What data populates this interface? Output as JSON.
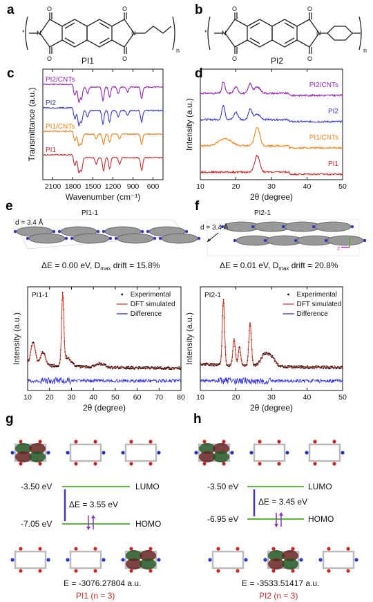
{
  "panels": {
    "a": {
      "label": "a",
      "polymer": "PI1",
      "sub": "n"
    },
    "b": {
      "label": "b",
      "polymer": "PI2",
      "sub": "n"
    },
    "c": {
      "label": "c"
    },
    "d": {
      "label": "d"
    },
    "e": {
      "label": "e",
      "model": "PI1-1",
      "d": "d = 3.4 Å",
      "energy": "ΔE = 0.00 eV, D",
      "drift": "max",
      "drift2": " drift = 15.8%"
    },
    "f": {
      "label": "f",
      "model": "PI2-1",
      "d": "d = 3.4 Å",
      "energy": "ΔE = 0.01 eV, D",
      "drift": "max",
      "drift2": " drift = 20.8%"
    },
    "g": {
      "label": "g",
      "lumo_e": "-3.50 eV",
      "homo_e": "-7.05 eV",
      "gap": "ΔE = 3.55 eV",
      "lumo": "LUMO",
      "homo": "HOMO",
      "total": "E = -3076.27804 a.u.",
      "name": "PI1 (n = 3)"
    },
    "h": {
      "label": "h",
      "lumo_e": "-3.50 eV",
      "homo_e": "-6.95 eV",
      "gap": "ΔE = 3.45 eV",
      "lumo": "LUMO",
      "homo": "HOMO",
      "total": "E = -3533.51417 a.u.",
      "name": "PI2 (n = 3)"
    }
  },
  "colors": {
    "PI1": "#d62728",
    "PI1/CNTs": "#ff7f0e",
    "PI2": "#3333dd",
    "PI2/CNTs": "#9b1fbf",
    "sim": "#e03020",
    "diff": "#2222ee",
    "level": "#55bb33",
    "arrow": "#4433cc",
    "spin": "#8833bb"
  },
  "chart_data": [
    {
      "id": "c",
      "type": "line",
      "xlabel": "Wavenumber (cm⁻¹)",
      "ylabel": "Transmittance (a.u.)",
      "xlim": [
        2250,
        450
      ],
      "xticks": [
        2100,
        1800,
        1500,
        1200,
        900,
        600
      ],
      "series": [
        {
          "name": "PI2/CNTs",
          "offset": 3,
          "dips": [
            [
              1770,
              0.5
            ],
            [
              1710,
              0.9
            ],
            [
              1670,
              0.7
            ],
            [
              1580,
              0.4
            ],
            [
              1350,
              0.8
            ],
            [
              1250,
              0.6
            ],
            [
              1120,
              0.4
            ],
            [
              980,
              0.3
            ],
            [
              770,
              0.7
            ]
          ]
        },
        {
          "name": "PI2",
          "offset": 2,
          "dips": [
            [
              1770,
              0.5
            ],
            [
              1710,
              0.9
            ],
            [
              1670,
              0.7
            ],
            [
              1580,
              0.4
            ],
            [
              1350,
              0.8
            ],
            [
              1250,
              0.7
            ],
            [
              1120,
              0.4
            ],
            [
              980,
              0.3
            ],
            [
              770,
              0.7
            ]
          ]
        },
        {
          "name": "PI1/CNTs",
          "offset": 1,
          "dips": [
            [
              1770,
              0.4
            ],
            [
              1710,
              0.7
            ],
            [
              1670,
              0.6
            ],
            [
              1450,
              0.3
            ],
            [
              1340,
              0.6
            ],
            [
              1250,
              0.5
            ],
            [
              1100,
              0.3
            ],
            [
              770,
              0.6
            ]
          ]
        },
        {
          "name": "PI1",
          "offset": 0,
          "dips": [
            [
              1770,
              0.5
            ],
            [
              1710,
              0.9
            ],
            [
              1670,
              0.8
            ],
            [
              1450,
              0.4
            ],
            [
              1340,
              0.8
            ],
            [
              1250,
              0.7
            ],
            [
              1100,
              0.4
            ],
            [
              770,
              0.8
            ]
          ]
        }
      ]
    },
    {
      "id": "d",
      "type": "line",
      "xlabel": "2θ (degree)",
      "ylabel": "Intensity (a.u.)",
      "xlim": [
        10,
        50
      ],
      "xticks": [
        10,
        20,
        30,
        40,
        50
      ],
      "series": [
        {
          "name": "PI2/CNTs",
          "offset": 3,
          "peaks": [
            [
              16.5,
              0.55,
              0.6
            ],
            [
              20,
              0.3,
              0.8
            ],
            [
              24,
              0.45,
              0.7
            ],
            [
              26,
              0.3,
              1.2
            ]
          ]
        },
        {
          "name": "PI2",
          "offset": 2,
          "peaks": [
            [
              16.5,
              0.7,
              0.6
            ],
            [
              20,
              0.35,
              0.8
            ],
            [
              24,
              0.5,
              0.7
            ],
            [
              26,
              0.25,
              1.2
            ]
          ]
        },
        {
          "name": "PI1/CNTs",
          "offset": 1,
          "peaks": [
            [
              17,
              0.35,
              2.5
            ],
            [
              26,
              0.9,
              1.0
            ]
          ]
        },
        {
          "name": "PI1",
          "offset": 0,
          "peaks": [
            [
              26,
              0.8,
              1.0
            ]
          ]
        }
      ]
    },
    {
      "id": "e",
      "type": "scatter",
      "title": "PI1-1",
      "xlabel": "2θ (degree)",
      "ylabel": "Intensity (a.u.)",
      "xlim": [
        10,
        80
      ],
      "xticks": [
        10,
        20,
        30,
        40,
        50,
        60,
        70,
        80
      ],
      "legend": [
        "Experimental",
        "DFT simulated",
        "Difference"
      ],
      "peaks": [
        [
          12.5,
          0.3,
          1.5
        ],
        [
          17,
          0.18,
          1.5
        ],
        [
          26,
          0.95,
          0.7
        ],
        [
          28,
          0.12,
          2.5
        ],
        [
          43,
          0.05,
          3
        ]
      ]
    },
    {
      "id": "f",
      "type": "scatter",
      "title": "PI2-1",
      "xlabel": "2θ (degree)",
      "ylabel": "Intensity (a.u.)",
      "xlim": [
        10,
        50
      ],
      "xticks": [
        10,
        20,
        30,
        40,
        50
      ],
      "legend": [
        "Experimental",
        "DFT simulated",
        "Difference"
      ],
      "peaks": [
        [
          16.5,
          0.9,
          0.45
        ],
        [
          19.5,
          0.35,
          0.5
        ],
        [
          21,
          0.25,
          0.5
        ],
        [
          24,
          0.6,
          0.5
        ],
        [
          28,
          0.15,
          1.5
        ],
        [
          30,
          0.12,
          1.5
        ]
      ]
    }
  ]
}
